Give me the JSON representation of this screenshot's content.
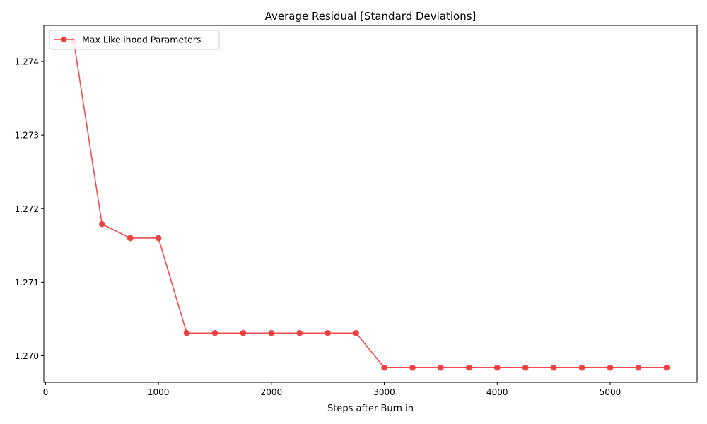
{
  "chart_data": {
    "type": "line",
    "title": "Average Residual [Standard Deviations]",
    "xlabel": "Steps after Burn in",
    "ylabel": "",
    "xlim": [
      -15,
      5770
    ],
    "ylim": [
      1.26964,
      1.27449
    ],
    "x_ticks": [
      0,
      1000,
      2000,
      3000,
      4000,
      5000
    ],
    "x_tick_labels": [
      "0",
      "1000",
      "2000",
      "3000",
      "4000",
      "5000"
    ],
    "y_ticks": [
      1.27,
      1.271,
      1.272,
      1.273,
      1.274
    ],
    "y_tick_labels": [
      "1.270",
      "1.271",
      "1.272",
      "1.273",
      "1.274"
    ],
    "grid": false,
    "legend_position": "upper-left",
    "series": [
      {
        "name": "Max Likelihood Parameters",
        "color": "#f03a3a",
        "marker": "circle",
        "x": [
          250,
          500,
          750,
          1000,
          1250,
          1500,
          1750,
          2000,
          2250,
          2500,
          2750,
          3000,
          3250,
          3500,
          3750,
          4000,
          4250,
          4500,
          4750,
          5000,
          5250,
          5500
        ],
        "y": [
          1.27428,
          1.27179,
          1.2716,
          1.2716,
          1.27031,
          1.27031,
          1.27031,
          1.27031,
          1.27031,
          1.27031,
          1.27031,
          1.26984,
          1.26984,
          1.26984,
          1.26984,
          1.26984,
          1.26984,
          1.26984,
          1.26984,
          1.26984,
          1.26984,
          1.26984
        ]
      }
    ]
  }
}
